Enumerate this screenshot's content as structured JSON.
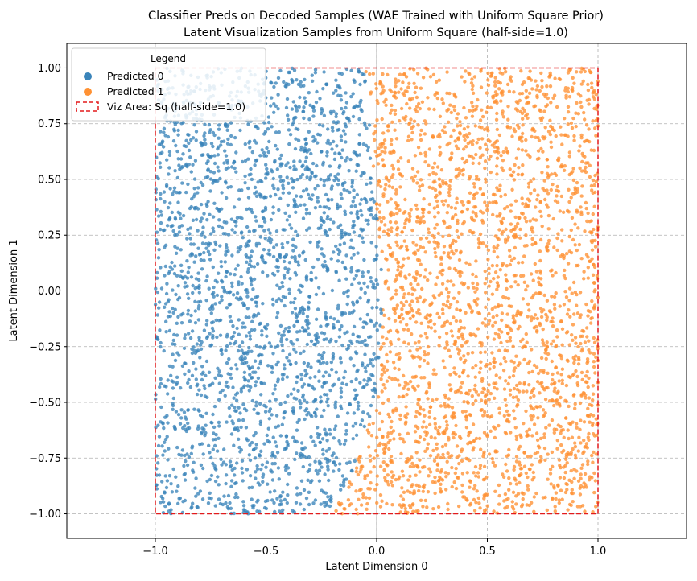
{
  "chart_data": {
    "type": "scatter",
    "title": "Classifier Preds on Decoded Samples (WAE Trained with Uniform Square Prior)",
    "subtitle": "Latent Visualization Samples from Uniform Square (half-side=1.0)",
    "xlabel": "Latent Dimension 0",
    "ylabel": "Latent Dimension 1",
    "xlim": [
      -1.4,
      1.4
    ],
    "ylim": [
      -1.11,
      1.11
    ],
    "xticks": [
      -1.0,
      -0.5,
      0.0,
      0.5,
      1.0
    ],
    "xtick_labels": [
      "−1.0",
      "−0.5",
      "0.0",
      "0.5",
      "1.0"
    ],
    "yticks": [
      -1.0,
      -0.75,
      -0.5,
      -0.25,
      0.0,
      0.25,
      0.5,
      0.75,
      1.0
    ],
    "ytick_labels": [
      "−1.00",
      "−0.75",
      "−0.50",
      "−0.25",
      "0.00",
      "0.25",
      "0.50",
      "0.75",
      "1.00"
    ],
    "grid": true,
    "legend": {
      "title": "Legend",
      "placement": "top-left",
      "entries": [
        "Predicted 0",
        "Predicted 1",
        "Viz Area: Sq (half-side=1.0)"
      ]
    },
    "series": [
      {
        "name": "Predicted 0",
        "color": "#3a84ba",
        "region": "x < boundary"
      },
      {
        "name": "Predicted 1",
        "color": "#ff9133",
        "region": "x >= boundary"
      }
    ],
    "decision_boundary": [
      {
        "y": 1.0,
        "x": -0.05
      },
      {
        "y": 0.5,
        "x": -0.01
      },
      {
        "y": 0.0,
        "x": 0.03
      },
      {
        "y": -0.5,
        "x": 0.0
      },
      {
        "y": -0.8,
        "x": -0.1
      },
      {
        "y": -1.0,
        "x": -0.2
      }
    ],
    "viz_area": {
      "name": "Viz Area: Sq (half-side=1.0)",
      "half_side": 1.0,
      "color": "#e31a1c",
      "style": "dashed"
    },
    "sample_count": 5000
  }
}
